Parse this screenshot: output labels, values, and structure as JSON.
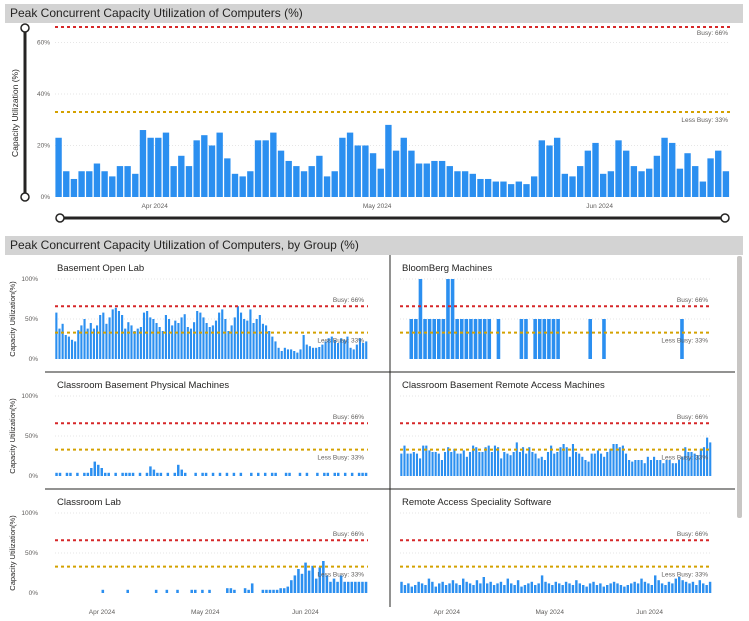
{
  "top": {
    "title": "Peak Concurrent Capacity Utilization of Computers (%)",
    "ylabel": "Capacity Utilization (%)",
    "busy_label": "Busy: 66%",
    "less_busy_label": "Less Busy: 33%"
  },
  "bottom": {
    "title": "Peak Concurrent Capacity Utilization of Computers, by Group (%)",
    "ylabel": "Capacity Utilization(%)",
    "busy_label": "Busy: 66%",
    "less_busy_label": "Less Busy: 33%"
  },
  "colors": {
    "bar": "#2b8ff0",
    "busy": "#d62728",
    "less_busy": "#d4a100",
    "grid": "#e6e6e6"
  },
  "chart_data": [
    {
      "type": "bar",
      "title": "Peak Concurrent Capacity Utilization of Computers (%)",
      "ylabel": "Capacity Utilization (%)",
      "ylim": [
        0,
        66
      ],
      "yticks": [
        "0%",
        "20%",
        "40%",
        "60%"
      ],
      "x_tick_labels": [
        "Apr 2024",
        "May 2024",
        "Jun 2024"
      ],
      "x_tick_index": [
        13,
        42,
        71
      ],
      "reference_lines": [
        {
          "label": "Busy: 66%",
          "value": 66,
          "color": "#d62728"
        },
        {
          "label": "Less Busy: 33%",
          "value": 33,
          "color": "#d4a100"
        }
      ],
      "values": [
        23,
        10,
        7,
        10,
        10,
        13,
        10,
        8,
        12,
        12,
        9,
        26,
        23,
        23,
        25,
        12,
        16,
        12,
        22,
        24,
        20,
        25,
        15,
        9,
        8,
        10,
        22,
        22,
        25,
        18,
        14,
        12,
        10,
        12,
        16,
        8,
        10,
        23,
        25,
        20,
        20,
        17,
        11,
        28,
        18,
        23,
        18,
        13,
        13,
        14,
        14,
        12,
        10,
        10,
        9,
        7,
        7,
        6,
        6,
        5,
        6,
        5,
        8,
        22,
        20,
        23,
        9,
        8,
        12,
        18,
        21,
        9,
        10,
        22,
        18,
        12,
        10,
        11,
        16,
        23,
        21,
        11,
        17,
        12,
        6,
        15,
        18,
        10
      ]
    },
    {
      "type": "bar",
      "title": "Basement Open Lab",
      "ylabel": "Capacity Utilization(%)",
      "ylim": [
        0,
        100
      ],
      "yticks": [
        "0%",
        "50%",
        "100%"
      ],
      "reference_lines": [
        {
          "label": "Busy: 66%",
          "value": 66
        },
        {
          "label": "Less Busy: 33%",
          "value": 33
        }
      ],
      "values": [
        58,
        38,
        44,
        30,
        28,
        24,
        22,
        36,
        42,
        50,
        38,
        45,
        38,
        42,
        55,
        58,
        44,
        52,
        62,
        64,
        60,
        55,
        38,
        46,
        42,
        35,
        38,
        40,
        58,
        60,
        52,
        50,
        45,
        40,
        35,
        55,
        50,
        42,
        48,
        45,
        52,
        56,
        40,
        38,
        46,
        60,
        58,
        52,
        45,
        40,
        42,
        48,
        58,
        62,
        50,
        35,
        42,
        52,
        66,
        58,
        50,
        48,
        62,
        45,
        50,
        55,
        44,
        42,
        35,
        28,
        22,
        14,
        10,
        14,
        12,
        12,
        10,
        8,
        12,
        30,
        18,
        16,
        14,
        14,
        15,
        18,
        22,
        26,
        28,
        24,
        20,
        26,
        24,
        28,
        14,
        12,
        18,
        26,
        20,
        22
      ]
    },
    {
      "type": "bar",
      "title": "BloomBerg Machines",
      "ylabel": "",
      "ylim": [
        0,
        100
      ],
      "reference_lines": [
        {
          "label": "Busy: 66%",
          "value": 66
        },
        {
          "label": "Less Busy: 33%",
          "value": 33
        }
      ],
      "values": [
        0,
        0,
        50,
        50,
        100,
        50,
        50,
        50,
        50,
        50,
        100,
        100,
        50,
        50,
        50,
        50,
        50,
        50,
        50,
        50,
        0,
        50,
        0,
        0,
        0,
        0,
        50,
        50,
        0,
        50,
        50,
        50,
        50,
        50,
        50,
        0,
        0,
        0,
        0,
        0,
        0,
        50,
        0,
        0,
        50,
        0,
        0,
        0,
        0,
        0,
        0,
        0,
        0,
        0,
        0,
        0,
        0,
        0,
        0,
        0,
        0,
        50,
        0,
        0,
        0,
        0,
        0,
        0
      ]
    },
    {
      "type": "bar",
      "title": "Classroom Basement Physical Machines",
      "ylabel": "Capacity Utilization(%)",
      "ylim": [
        0,
        100
      ],
      "yticks": [
        "0%",
        "50%",
        "100%"
      ],
      "reference_lines": [
        {
          "label": "Busy: 66%",
          "value": 66
        },
        {
          "label": "Less Busy: 33%",
          "value": 33
        }
      ],
      "values": [
        4,
        4,
        0,
        4,
        4,
        0,
        4,
        0,
        4,
        4,
        10,
        18,
        14,
        10,
        4,
        4,
        0,
        4,
        0,
        4,
        4,
        4,
        4,
        0,
        4,
        0,
        4,
        12,
        8,
        4,
        4,
        0,
        4,
        0,
        4,
        14,
        8,
        4,
        0,
        0,
        4,
        0,
        4,
        4,
        0,
        4,
        0,
        4,
        0,
        4,
        0,
        4,
        0,
        4,
        0,
        0,
        4,
        0,
        4,
        0,
        4,
        0,
        4,
        4,
        0,
        0,
        4,
        4,
        0,
        0,
        4,
        0,
        4,
        0,
        0,
        4,
        0,
        4,
        4,
        0,
        4,
        4,
        0,
        4,
        0,
        4,
        0,
        4,
        4,
        4
      ]
    },
    {
      "type": "bar",
      "title": "Classroom Basement Remote Access Machines",
      "ylabel": "",
      "ylim": [
        0,
        100
      ],
      "reference_lines": [
        {
          "label": "Busy: 66%",
          "value": 66
        },
        {
          "label": "Less Busy: 33%",
          "value": 33
        }
      ],
      "values": [
        28,
        38,
        28,
        28,
        30,
        28,
        22,
        38,
        38,
        32,
        30,
        30,
        28,
        20,
        30,
        36,
        30,
        34,
        28,
        28,
        32,
        24,
        30,
        38,
        36,
        30,
        30,
        36,
        38,
        30,
        38,
        36,
        22,
        30,
        28,
        26,
        30,
        42,
        30,
        36,
        28,
        36,
        30,
        28,
        22,
        24,
        20,
        30,
        38,
        28,
        30,
        36,
        40,
        36,
        24,
        40,
        30,
        28,
        24,
        20,
        18,
        28,
        28,
        32,
        28,
        24,
        30,
        34,
        40,
        40,
        36,
        38,
        28,
        20,
        18,
        20,
        20,
        20,
        16,
        24,
        20,
        24,
        20,
        20,
        16,
        20,
        20,
        16,
        16,
        20,
        24,
        36,
        30,
        30,
        28,
        26,
        34,
        36,
        48,
        42
      ]
    },
    {
      "type": "bar",
      "title": "Classroom Lab",
      "ylabel": "Capacity Utilization(%)",
      "ylim": [
        0,
        100
      ],
      "yticks": [
        "0%",
        "50%",
        "100%"
      ],
      "x_tick_labels": [
        "Apr 2024",
        "May 2024",
        "Jun 2024"
      ],
      "reference_lines": [
        {
          "label": "Busy: 66%",
          "value": 66
        },
        {
          "label": "Less Busy: 33%",
          "value": 33
        }
      ],
      "values": [
        0,
        0,
        0,
        0,
        0,
        0,
        0,
        0,
        0,
        0,
        0,
        0,
        0,
        4,
        0,
        0,
        0,
        0,
        0,
        0,
        4,
        0,
        0,
        0,
        0,
        0,
        0,
        0,
        4,
        0,
        0,
        4,
        0,
        0,
        4,
        0,
        0,
        0,
        4,
        4,
        0,
        4,
        0,
        4,
        0,
        0,
        0,
        0,
        6,
        6,
        4,
        0,
        0,
        6,
        4,
        12,
        0,
        0,
        4,
        4,
        4,
        4,
        4,
        6,
        6,
        8,
        16,
        22,
        30,
        24,
        38,
        28,
        34,
        18,
        32,
        40,
        22,
        14,
        18,
        14,
        22,
        14,
        14,
        14,
        14,
        14,
        14,
        14
      ]
    },
    {
      "type": "bar",
      "title": "Remote Access Speciality Software",
      "ylabel": "",
      "ylim": [
        0,
        100
      ],
      "x_tick_labels": [
        "Apr 2024",
        "May 2024",
        "Jun 2024"
      ],
      "reference_lines": [
        {
          "label": "Busy: 66%",
          "value": 66
        },
        {
          "label": "Less Busy: 33%",
          "value": 33
        }
      ],
      "values": [
        14,
        10,
        12,
        8,
        10,
        14,
        12,
        10,
        18,
        14,
        8,
        12,
        14,
        10,
        12,
        16,
        12,
        10,
        18,
        14,
        12,
        10,
        16,
        12,
        20,
        12,
        14,
        10,
        12,
        14,
        10,
        18,
        12,
        10,
        16,
        8,
        10,
        12,
        14,
        10,
        12,
        22,
        14,
        12,
        10,
        14,
        12,
        10,
        14,
        12,
        10,
        16,
        12,
        10,
        8,
        12,
        14,
        10,
        12,
        8,
        10,
        12,
        14,
        12,
        10,
        8,
        10,
        12,
        14,
        12,
        18,
        14,
        12,
        10,
        22,
        16,
        12,
        10,
        14,
        12,
        18,
        20,
        16,
        14,
        12,
        14,
        10,
        16,
        12,
        10,
        14
      ]
    }
  ]
}
